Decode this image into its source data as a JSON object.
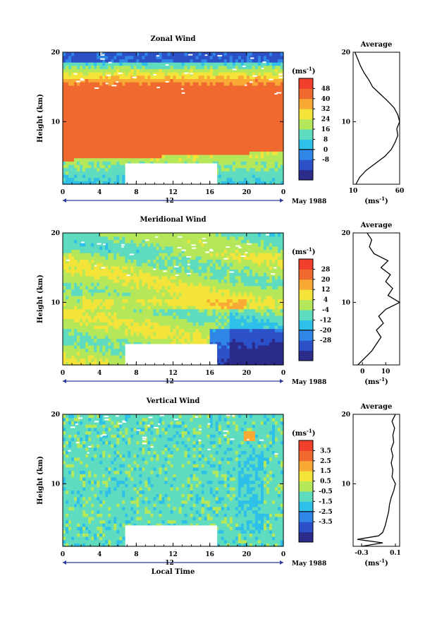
{
  "chart_data": [
    {
      "type": "heatmap",
      "title": "Zonal Wind",
      "xlabel": "",
      "ylabel": "Height (km)",
      "x_ticks": [
        "0",
        "4",
        "8",
        "12",
        "16",
        "20",
        "0"
      ],
      "y_ticks": [
        "20",
        "10"
      ],
      "date_tick": "12",
      "date_label": "May 1988",
      "xlim": [
        0,
        24
      ],
      "ylim": [
        1,
        20
      ],
      "colorbar": {
        "unit": "(ms",
        "unit_exp": "-1",
        "unit_close": ")",
        "labels": [
          "48",
          "40",
          "32",
          "24",
          "16",
          "8",
          "0",
          "-8"
        ],
        "levels": [
          -8,
          0,
          8,
          16,
          24,
          32,
          40,
          48
        ],
        "colors": [
          "#2b2b8a",
          "#2c50c8",
          "#2f86e6",
          "#2ec0e8",
          "#5fdcc0",
          "#b4e85a",
          "#f4e43a",
          "#f8aa34",
          "#f06a30",
          "#f0402c"
        ]
      },
      "data_gap": {
        "x": [
          6.8,
          16.8
        ],
        "y": [
          1,
          4
        ]
      },
      "profile": {
        "title": "Average",
        "x_ticks": [
          "10",
          "60"
        ],
        "xlim": [
          10,
          60
        ],
        "y_ticks": [
          "20",
          "10"
        ],
        "xlabel": "(ms",
        "xlabel_exp": "-1",
        "xlabel_close": ")",
        "height": [
          1,
          2,
          3,
          4,
          5,
          6,
          7,
          8,
          9,
          10,
          11,
          12,
          13,
          14,
          15,
          16,
          17,
          18,
          19,
          20
        ],
        "values": [
          13,
          17,
          24,
          34,
          44,
          51,
          55,
          58,
          57,
          60,
          58,
          54,
          47,
          39,
          31,
          27,
          22,
          18,
          15,
          12
        ]
      }
    },
    {
      "type": "heatmap",
      "title": "Meridional Wind",
      "xlabel": "",
      "ylabel": "Height (km)",
      "x_ticks": [
        "0",
        "4",
        "8",
        "12",
        "16",
        "20",
        "0"
      ],
      "y_ticks": [
        "20",
        "10"
      ],
      "date_tick": "12",
      "date_label": "May 1988",
      "xlim": [
        0,
        24
      ],
      "ylim": [
        1,
        20
      ],
      "colorbar": {
        "unit": "(ms",
        "unit_exp": "-1",
        "unit_close": ")",
        "labels": [
          "28",
          "20",
          "12",
          "4",
          "-4",
          "-12",
          "-20",
          "-28"
        ],
        "levels": [
          -28,
          -20,
          -12,
          -4,
          4,
          12,
          20,
          28
        ],
        "colors": [
          "#2b2b8a",
          "#2c50c8",
          "#2f86e6",
          "#2ec0e8",
          "#5fdcc0",
          "#b4e85a",
          "#f4e43a",
          "#f8aa34",
          "#f06a30",
          "#f0402c"
        ]
      },
      "data_gap": {
        "x": [
          6.8,
          16.8
        ],
        "y": [
          1,
          4
        ]
      },
      "profile": {
        "title": "Average",
        "x_ticks": [
          "0",
          "10"
        ],
        "xlim": [
          -4,
          16
        ],
        "y_ticks": [
          "20",
          "10"
        ],
        "xlabel": "(ms",
        "xlabel_exp": "-1",
        "xlabel_close": ")",
        "height": [
          1,
          2,
          3,
          4,
          5,
          6,
          7,
          8,
          9,
          10,
          11,
          12,
          13,
          14,
          15,
          16,
          17,
          18,
          19,
          20
        ],
        "values": [
          -2,
          1,
          4,
          6,
          8,
          6,
          9,
          7,
          10,
          16,
          11,
          13,
          10,
          12,
          8,
          11,
          5,
          3,
          4,
          2
        ]
      }
    },
    {
      "type": "heatmap",
      "title": "Vertical Wind",
      "xlabel": "Local Time",
      "ylabel": "Height (km)",
      "x_ticks": [
        "0",
        "4",
        "8",
        "12",
        "16",
        "20",
        "0"
      ],
      "y_ticks": [
        "20",
        "10"
      ],
      "date_tick": "12",
      "date_label": "May 1988",
      "xlim": [
        0,
        24
      ],
      "ylim": [
        1,
        20
      ],
      "colorbar": {
        "unit": "(ms",
        "unit_exp": "-1",
        "unit_close": ")",
        "labels": [
          "3.5",
          "2.5",
          "1.5",
          "0.5",
          "-0.5",
          "-1.5",
          "-2.5",
          "-3.5"
        ],
        "levels": [
          -3.5,
          -2.5,
          -1.5,
          -0.5,
          0.5,
          1.5,
          2.5,
          3.5
        ],
        "colors": [
          "#2b2b8a",
          "#2c50c8",
          "#2f86e6",
          "#2ec0e8",
          "#5fdcc0",
          "#b4e85a",
          "#f4e43a",
          "#f8aa34",
          "#f06a30",
          "#f0402c"
        ]
      },
      "data_gap": {
        "x": [
          6.8,
          16.8
        ],
        "y": [
          1,
          4
        ]
      },
      "profile": {
        "title": "Average",
        "x_ticks": [
          "-0.3",
          "0.1"
        ],
        "xlim": [
          -0.4,
          0.15
        ],
        "y_ticks": [
          "20",
          "10"
        ],
        "xlabel": "(ms",
        "xlabel_exp": "-1",
        "xlabel_close": ")",
        "height": [
          1,
          1.5,
          2,
          2.5,
          3,
          4,
          5,
          6,
          7,
          8,
          9,
          10,
          11,
          12,
          13,
          14,
          15,
          16,
          17,
          18,
          19,
          20
        ],
        "values": [
          -0.3,
          -0.05,
          -0.35,
          -0.1,
          -0.05,
          -0.02,
          0.0,
          0.02,
          0.03,
          0.05,
          0.08,
          0.1,
          0.06,
          0.07,
          0.05,
          0.07,
          0.05,
          0.08,
          0.07,
          0.09,
          0.06,
          0.1
        ]
      }
    }
  ]
}
